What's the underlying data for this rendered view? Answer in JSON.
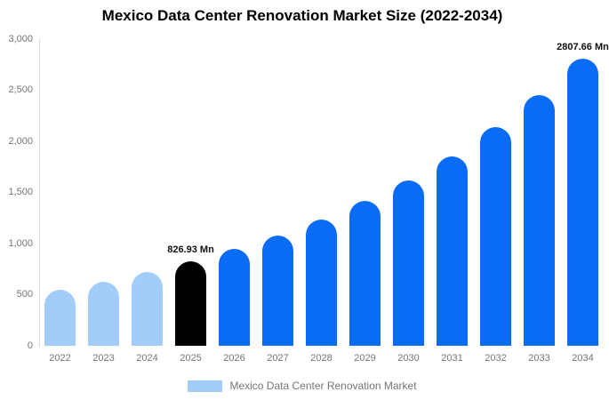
{
  "title": "Mexico Data Center Renovation Market Size (2022-2034)",
  "legend": {
    "label": "Mexico Data Center Renovation Market",
    "swatch_color": "#a2cdfb"
  },
  "colors": {
    "historical_bar": "#a2cdfb",
    "base_year_bar": "#000000",
    "forecast_bar": "#0a6cf5",
    "axis_line": "#dddddd",
    "tick_text": "#757575",
    "annotation_text": "#111111"
  },
  "chart_data": {
    "type": "bar",
    "title": "Mexico Data Center Renovation Market Size (2022-2034)",
    "xlabel": "",
    "ylabel": "",
    "ylim": [
      0,
      3000
    ],
    "grid": false,
    "legend_position": "bottom",
    "categories": [
      "2022",
      "2023",
      "2024",
      "2025",
      "2026",
      "2027",
      "2028",
      "2029",
      "2030",
      "2031",
      "2032",
      "2033",
      "2034"
    ],
    "values": [
      545,
      630,
      722,
      826.93,
      945,
      1080,
      1235,
      1415,
      1620,
      1855,
      2140,
      2455,
      2807.66
    ],
    "bar_colors": [
      "#a2cdfb",
      "#a2cdfb",
      "#a2cdfb",
      "#000000",
      "#0a6cf5",
      "#0a6cf5",
      "#0a6cf5",
      "#0a6cf5",
      "#0a6cf5",
      "#0a6cf5",
      "#0a6cf5",
      "#0a6cf5",
      "#0a6cf5"
    ],
    "annotations": [
      {
        "index": 3,
        "text": "826.93 Mn"
      },
      {
        "index": 12,
        "text": "2807.66 Mn"
      }
    ],
    "y_ticks": [
      {
        "value": 0,
        "label": "0"
      },
      {
        "value": 500,
        "label": "500"
      },
      {
        "value": 1000,
        "label": "1,000"
      },
      {
        "value": 1500,
        "label": "1,500"
      },
      {
        "value": 2000,
        "label": "2,000"
      },
      {
        "value": 2500,
        "label": "2,500"
      },
      {
        "value": 3000,
        "label": "3,000"
      }
    ]
  }
}
